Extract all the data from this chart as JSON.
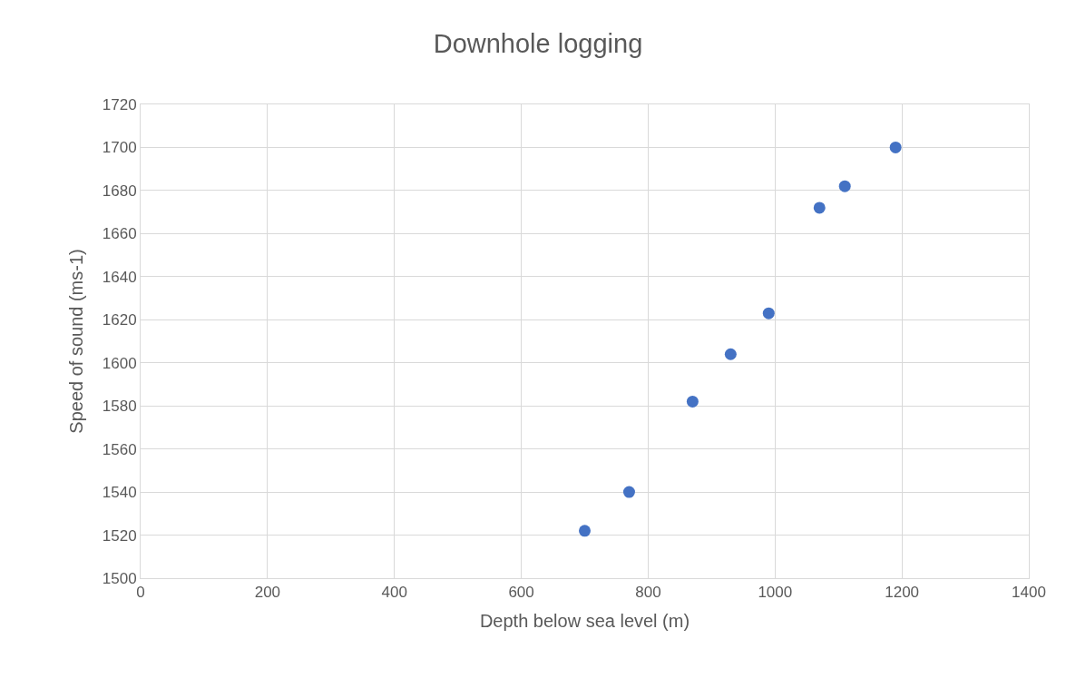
{
  "chart_data": {
    "type": "scatter",
    "title": "Downhole logging",
    "xlabel": "Depth below sea level (m)",
    "ylabel": "Speed of sound (ms-1)",
    "x": [
      700,
      770,
      870,
      930,
      990,
      1070,
      1110,
      1190
    ],
    "series": [
      {
        "color": "#4472c4",
        "values": [
          1522,
          1540,
          1582,
          1604,
          1623,
          1672,
          1682,
          1700
        ]
      }
    ],
    "xlim": [
      0,
      1400
    ],
    "xticks": [
      0,
      200,
      400,
      600,
      800,
      1000,
      1200,
      1400
    ],
    "ylim": [
      1500,
      1720
    ],
    "yticks": [
      1500,
      1520,
      1540,
      1560,
      1580,
      1600,
      1620,
      1640,
      1660,
      1680,
      1700,
      1720
    ],
    "grid": true,
    "marker": "circle"
  }
}
